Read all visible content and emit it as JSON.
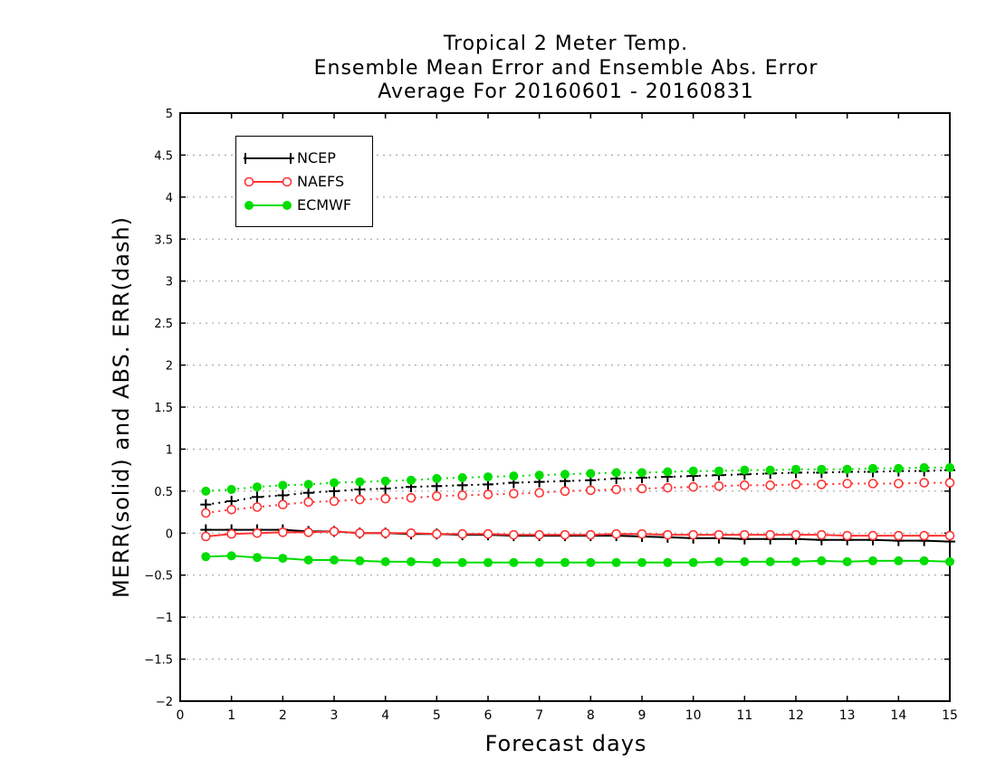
{
  "chart_data": {
    "type": "line",
    "title": [
      "Tropical 2 Meter Temp.",
      "Ensemble Mean Error and Ensemble Abs. Error",
      "Average For 20160601 - 20160831"
    ],
    "xlabel": "Forecast days",
    "ylabel": "MERR(solid) and ABS. ERR(dash)",
    "xlim": [
      0,
      15
    ],
    "ylim": [
      -2,
      5
    ],
    "xticks": [
      0,
      1,
      2,
      3,
      4,
      5,
      6,
      7,
      8,
      9,
      10,
      11,
      12,
      13,
      14,
      15
    ],
    "yticks": [
      -2,
      -1.5,
      -1,
      -0.5,
      0,
      0.5,
      1,
      1.5,
      2,
      2.5,
      3,
      3.5,
      4,
      4.5,
      5
    ],
    "ytick_labels": [
      "−2",
      "−1.5",
      "−1",
      "−0.5",
      "0",
      "0.5",
      "1",
      "1.5",
      "2",
      "2.5",
      "3",
      "3.5",
      "4",
      "4.5",
      "5"
    ],
    "grid": "horizontal dotted",
    "legend_position": "top-left",
    "x": [
      0.5,
      1,
      1.5,
      2,
      2.5,
      3,
      3.5,
      4,
      4.5,
      5,
      5.5,
      6,
      6.5,
      7,
      7.5,
      8,
      8.5,
      9,
      9.5,
      10,
      10.5,
      11,
      11.5,
      12,
      12.5,
      13,
      13.5,
      14,
      14.5,
      15
    ],
    "series": [
      {
        "name": "NCEP",
        "color": "#000000",
        "marker": "plus",
        "mean_error": [
          0.04,
          0.04,
          0.04,
          0.04,
          0.02,
          0.02,
          0.0,
          0.0,
          -0.01,
          -0.01,
          -0.02,
          -0.02,
          -0.03,
          -0.03,
          -0.03,
          -0.03,
          -0.03,
          -0.04,
          -0.05,
          -0.06,
          -0.06,
          -0.07,
          -0.07,
          -0.07,
          -0.08,
          -0.08,
          -0.08,
          -0.09,
          -0.09,
          -0.1
        ],
        "abs_error": [
          0.34,
          0.38,
          0.43,
          0.45,
          0.48,
          0.5,
          0.52,
          0.53,
          0.55,
          0.56,
          0.57,
          0.58,
          0.6,
          0.61,
          0.62,
          0.63,
          0.65,
          0.66,
          0.67,
          0.68,
          0.69,
          0.7,
          0.71,
          0.72,
          0.72,
          0.73,
          0.73,
          0.74,
          0.74,
          0.75
        ]
      },
      {
        "name": "NAEFS",
        "color": "#ff3333",
        "marker": "open-circle",
        "mean_error": [
          -0.04,
          -0.01,
          0.0,
          0.01,
          0.01,
          0.02,
          0.0,
          0.0,
          0.0,
          -0.01,
          -0.01,
          -0.01,
          -0.02,
          -0.02,
          -0.02,
          -0.02,
          -0.01,
          -0.01,
          -0.02,
          -0.02,
          -0.02,
          -0.02,
          -0.02,
          -0.02,
          -0.02,
          -0.03,
          -0.03,
          -0.03,
          -0.03,
          -0.03
        ],
        "abs_error": [
          0.24,
          0.28,
          0.31,
          0.34,
          0.37,
          0.38,
          0.4,
          0.41,
          0.42,
          0.44,
          0.45,
          0.46,
          0.47,
          0.48,
          0.5,
          0.51,
          0.52,
          0.53,
          0.54,
          0.55,
          0.56,
          0.57,
          0.57,
          0.58,
          0.58,
          0.59,
          0.59,
          0.59,
          0.6,
          0.6
        ]
      },
      {
        "name": "ECMWF",
        "color": "#00dd00",
        "marker": "filled-circle",
        "mean_error": [
          -0.28,
          -0.27,
          -0.29,
          -0.3,
          -0.32,
          -0.32,
          -0.33,
          -0.34,
          -0.34,
          -0.35,
          -0.35,
          -0.35,
          -0.35,
          -0.35,
          -0.35,
          -0.35,
          -0.35,
          -0.35,
          -0.35,
          -0.35,
          -0.34,
          -0.34,
          -0.34,
          -0.34,
          -0.33,
          -0.34,
          -0.33,
          -0.33,
          -0.33,
          -0.34
        ],
        "abs_error": [
          0.5,
          0.52,
          0.55,
          0.57,
          0.58,
          0.6,
          0.61,
          0.62,
          0.63,
          0.65,
          0.66,
          0.67,
          0.68,
          0.69,
          0.7,
          0.71,
          0.72,
          0.72,
          0.73,
          0.74,
          0.74,
          0.75,
          0.75,
          0.76,
          0.76,
          0.76,
          0.77,
          0.77,
          0.78,
          0.78
        ]
      }
    ]
  }
}
